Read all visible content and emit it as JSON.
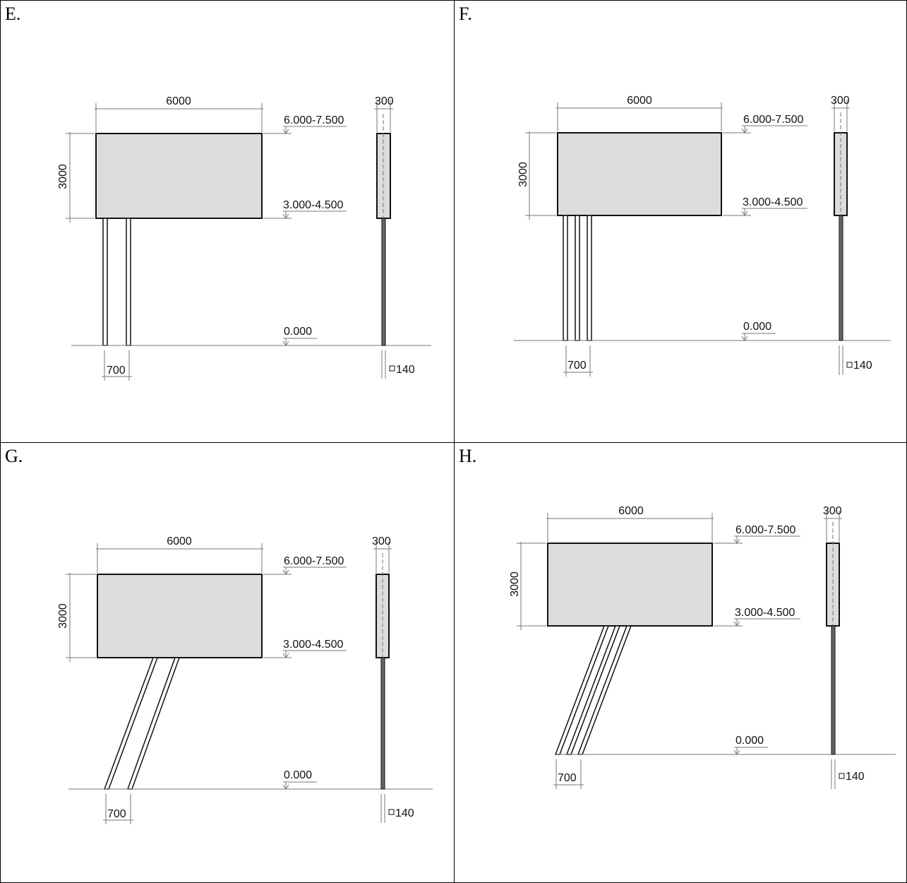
{
  "panels": [
    {
      "label": "E.",
      "width_dim": "6000",
      "height_dim": "3000",
      "top_level": "6.000-7.500",
      "bottom_level": "3.000-4.500",
      "ground_level": "0.000",
      "depth_dim": "300",
      "spacing_dim": "700",
      "post_size": "140",
      "post_count": 2,
      "post_style": "vertical"
    },
    {
      "label": "F.",
      "width_dim": "6000",
      "height_dim": "3000",
      "top_level": "6.000-7.500",
      "bottom_level": "3.000-4.500",
      "ground_level": "0.000",
      "depth_dim": "300",
      "spacing_dim": "700",
      "post_size": "140",
      "post_count": 3,
      "post_style": "vertical"
    },
    {
      "label": "G.",
      "width_dim": "6000",
      "height_dim": "3000",
      "top_level": "6.000-7.500",
      "bottom_level": "3.000-4.500",
      "ground_level": "0.000",
      "depth_dim": "300",
      "spacing_dim": "700",
      "post_size": "140",
      "post_count": 2,
      "post_style": "inclined"
    },
    {
      "label": "H.",
      "width_dim": "6000",
      "height_dim": "3000",
      "top_level": "6.000-7.500",
      "bottom_level": "3.000-4.500",
      "ground_level": "0.000",
      "depth_dim": "300",
      "spacing_dim": "700",
      "post_size": "140",
      "post_count": 3,
      "post_style": "inclined"
    }
  ],
  "colors": {
    "board_fill": "#dcdcdc",
    "line": "#111111",
    "dim_line": "#777777"
  }
}
